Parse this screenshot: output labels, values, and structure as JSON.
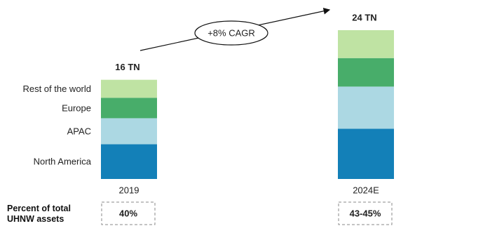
{
  "chart_data": {
    "type": "stacked-bar",
    "categories": [
      "2019",
      "2024E"
    ],
    "series": [
      {
        "name": "North America",
        "color": "#1380b8",
        "values": [
          5.6,
          8.1
        ]
      },
      {
        "name": "APAC",
        "color": "#acd8e3",
        "values": [
          4.2,
          6.8
        ]
      },
      {
        "name": "Europe",
        "color": "#48ad6a",
        "values": [
          3.3,
          4.6
        ]
      },
      {
        "name": "Rest of the world",
        "color": "#bfe3a3",
        "values": [
          2.9,
          4.5
        ]
      }
    ],
    "totals": {
      "values": [
        16,
        24
      ],
      "value_labels": [
        "16 TN",
        "24 TN"
      ]
    },
    "annotation": "+8% CAGR",
    "share_of_uhnw": {
      "label": "Percent of total UHNW assets",
      "value_labels": [
        "40%",
        "43-45%"
      ]
    }
  }
}
